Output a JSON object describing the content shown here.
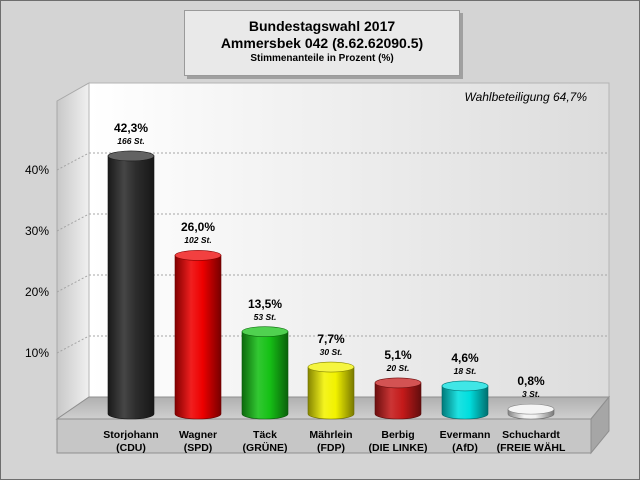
{
  "header": {
    "title": "Bundestagswahl 2017",
    "subtitle": "Ammersbek 042 (8.62.62090.5)",
    "caption": "Stimmenanteile in Prozent (%)"
  },
  "turnout_label": "Wahlbeteiligung 64,7%",
  "chart_data": {
    "type": "bar",
    "categories": [
      "Storjohann\n(CDU)",
      "Wagner\n(SPD)",
      "Täck\n(GRÜNE)",
      "Mährlein\n(FDP)",
      "Berbig\n(DIE LINKE)",
      "Evermann\n(AfD)",
      "Schuchardt\n(FREIE WÄHL"
    ],
    "values": [
      42.3,
      26.0,
      13.5,
      7.7,
      5.1,
      4.6,
      0.8
    ],
    "value_labels": [
      "42,3%",
      "26,0%",
      "13,5%",
      "7,7%",
      "5,1%",
      "4,6%",
      "0,8%"
    ],
    "vote_labels": [
      "166 St.",
      "102 St.",
      "53 St.",
      "30 St.",
      "20 St.",
      "18 St.",
      "3 St."
    ],
    "colors": [
      "#2d2d2d",
      "#ee0000",
      "#16c116",
      "#f2f200",
      "#c41a1a",
      "#00dede",
      "#f2f2f2"
    ],
    "y_ticks": [
      "10%",
      "20%",
      "30%",
      "40%"
    ],
    "ylim": [
      0,
      50
    ],
    "grid": true,
    "xlabel": "",
    "ylabel": ""
  }
}
